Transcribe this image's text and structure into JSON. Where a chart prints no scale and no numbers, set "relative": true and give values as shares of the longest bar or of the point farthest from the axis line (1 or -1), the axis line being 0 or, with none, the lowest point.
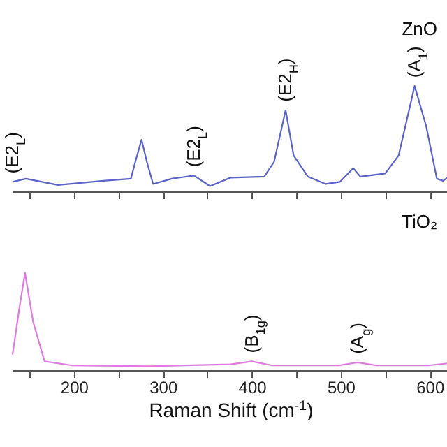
{
  "chart_data": [
    {
      "type": "line",
      "relative": true,
      "xlim": [
        131,
        621
      ],
      "xticks": [
        {
          "value": 150,
          "label": null
        },
        200,
        {
          "value": 250,
          "label": null
        },
        300,
        {
          "value": 350,
          "label": null
        },
        400,
        {
          "value": 450,
          "label": null
        },
        500,
        {
          "value": 550,
          "label": null
        },
        600
      ],
      "tick_labels": false,
      "x": [
        131,
        146,
        182,
        233,
        264,
        269,
        276,
        282,
        289,
        310,
        335,
        353,
        376,
        414,
        425,
        438,
        447,
        463,
        483,
        499,
        514,
        522,
        550,
        565,
        583,
        596,
        608,
        615,
        620
      ],
      "series": [
        {
          "name": "ZnO",
          "color": "#5a64c8",
          "values": [
            0.09,
            0.12,
            0.06,
            0.1,
            0.12,
            0.28,
            0.49,
            0.28,
            0.07,
            0.12,
            0.15,
            0.05,
            0.13,
            0.14,
            0.28,
            0.77,
            0.34,
            0.14,
            0.07,
            0.09,
            0.22,
            0.14,
            0.17,
            0.34,
            1.0,
            0.62,
            0.12,
            0.1,
            0.13
          ]
        }
      ],
      "annotations": [
        {
          "text": "(E2$_{L}$)",
          "x": 131,
          "y": 0.09
        },
        {
          "text": "(E2$_{L}$)",
          "x": 335,
          "y": 0.15
        },
        {
          "text": "(E2$_{H}$)",
          "x": 438,
          "y": 0.77
        },
        {
          "text": "(A$_{1}$)",
          "x": 583,
          "y": 1.0
        }
      ]
    },
    {
      "type": "line",
      "relative": true,
      "xlim": [
        131,
        621
      ],
      "xticks": [
        {
          "value": 150,
          "label": null
        },
        200,
        {
          "value": 250,
          "label": null
        },
        300,
        {
          "value": 350,
          "label": null
        },
        400,
        {
          "value": 450,
          "label": null
        },
        500,
        {
          "value": 550,
          "label": null
        },
        600
      ],
      "tick_labels": "x",
      "xlabel": "Raman Shift (cm$^{-1}$)",
      "x": [
        131,
        139,
        145,
        154,
        167,
        197,
        284,
        376,
        400,
        422,
        499,
        519,
        539,
        600,
        620
      ],
      "series": [
        {
          "name": "TiO₂",
          "color": "#e07ae0",
          "values": [
            0.16,
            0.66,
            1.0,
            0.5,
            0.09,
            0.05,
            0.04,
            0.06,
            0.09,
            0.05,
            0.05,
            0.08,
            0.05,
            0.05,
            0.07
          ]
        }
      ],
      "annotations": [
        {
          "text": "(B$_{1g}$)",
          "x": 400,
          "y": 0.09
        },
        {
          "text": "(A$_{g}$)",
          "x": 519,
          "y": 0.08
        }
      ]
    }
  ]
}
